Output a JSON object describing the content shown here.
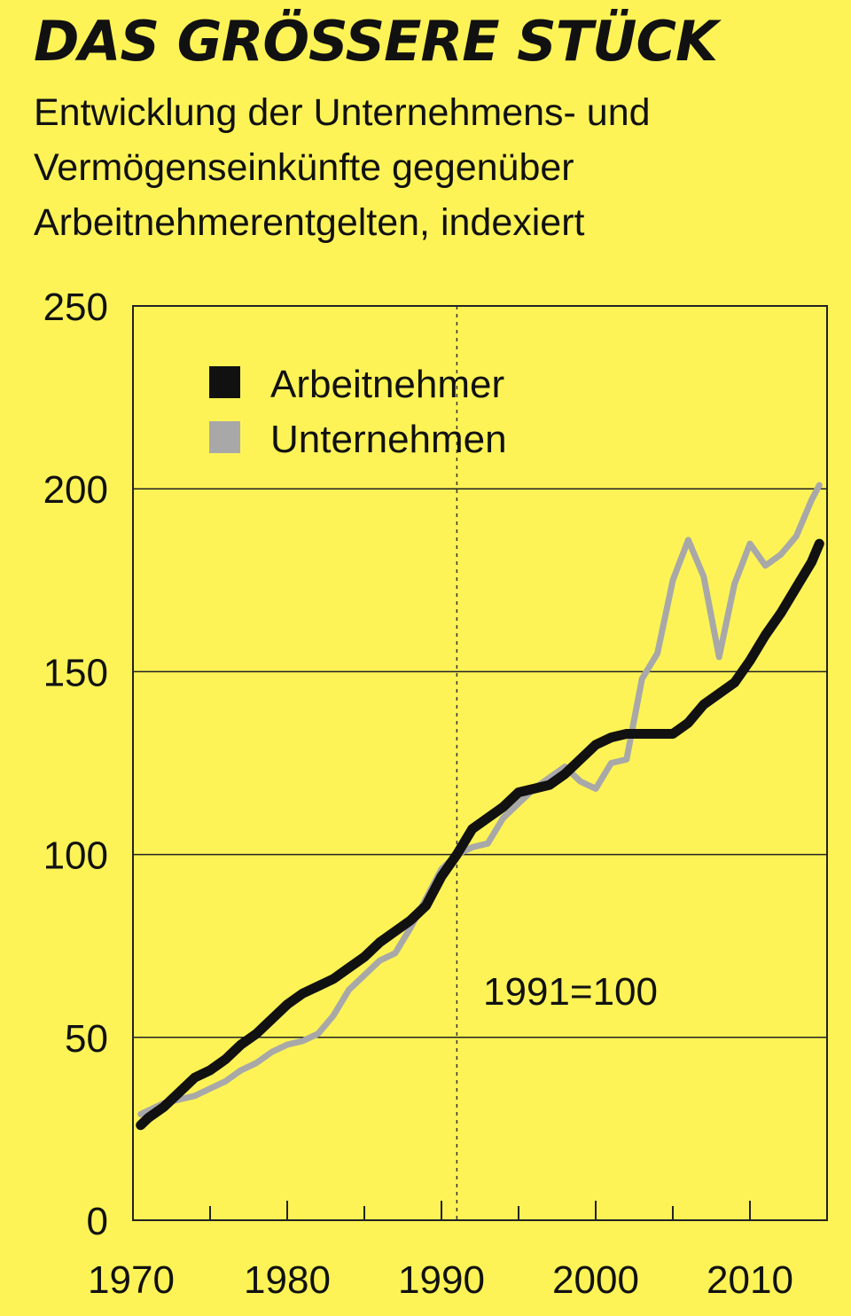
{
  "header": {
    "title": "DAS GRÖSSERE STÜCK",
    "subtitle": "Entwicklung der Unternehmens- und Vermögenseinkünfte gegenüber Arbeitnehmerentgelten, indexiert"
  },
  "chart_data": {
    "type": "line",
    "title": "DAS GRÖSSERE STÜCK",
    "subtitle": "Entwicklung der Unternehmens- und Vermögenseinkünfte gegenüber Arbeitnehmerentgelten, indexiert",
    "xlabel": "",
    "ylabel": "",
    "xlim": [
      1970,
      2015
    ],
    "ylim": [
      0,
      250
    ],
    "x_ticks": [
      1970,
      1980,
      1990,
      2000,
      2010
    ],
    "y_ticks": [
      0,
      50,
      100,
      150,
      200,
      250
    ],
    "grid": "horizontal",
    "reference_line": {
      "x": 1991,
      "style": "dotted"
    },
    "annotation": "1991=100",
    "legend": {
      "position": "top-left"
    },
    "series": [
      {
        "name": "Arbeitnehmer",
        "color": "#111111",
        "x": [
          1970.5,
          1971,
          1972,
          1973,
          1974,
          1975,
          1976,
          1977,
          1978,
          1979,
          1980,
          1981,
          1982,
          1983,
          1984,
          1985,
          1986,
          1987,
          1988,
          1989,
          1990,
          1991,
          1992,
          1993,
          1994,
          1995,
          1996,
          1997,
          1998,
          1999,
          2000,
          2001,
          2002,
          2003,
          2004,
          2005,
          2006,
          2007,
          2008,
          2009,
          2010,
          2011,
          2012,
          2013,
          2014,
          2014.5
        ],
        "values": [
          26,
          28,
          31,
          35,
          39,
          41,
          44,
          48,
          51,
          55,
          59,
          62,
          64,
          66,
          69,
          72,
          76,
          79,
          82,
          86,
          94,
          100,
          107,
          110,
          113,
          117,
          118,
          119,
          122,
          126,
          130,
          132,
          133,
          133,
          133,
          133,
          136,
          141,
          144,
          147,
          153,
          160,
          166,
          173,
          180,
          185
        ]
      },
      {
        "name": "Unternehmen",
        "color": "#a8a8a8",
        "x": [
          1970.5,
          1971,
          1972,
          1973,
          1974,
          1975,
          1976,
          1977,
          1978,
          1979,
          1980,
          1981,
          1982,
          1983,
          1984,
          1985,
          1986,
          1987,
          1988,
          1989,
          1990,
          1991,
          1992,
          1993,
          1994,
          1995,
          1996,
          1997,
          1998,
          1999,
          2000,
          2001,
          2002,
          2003,
          2004,
          2005,
          2006,
          2007,
          2008,
          2009,
          2010,
          2011,
          2012,
          2013,
          2014,
          2014.5
        ],
        "values": [
          29,
          30,
          32,
          33,
          34,
          36,
          38,
          41,
          43,
          46,
          48,
          49,
          51,
          56,
          63,
          67,
          71,
          73,
          80,
          88,
          96,
          100,
          102,
          103,
          110,
          114,
          118,
          121,
          124,
          120,
          118,
          125,
          126,
          148,
          155,
          175,
          186,
          176,
          154,
          174,
          185,
          179,
          182,
          187,
          197,
          201
        ]
      }
    ]
  }
}
